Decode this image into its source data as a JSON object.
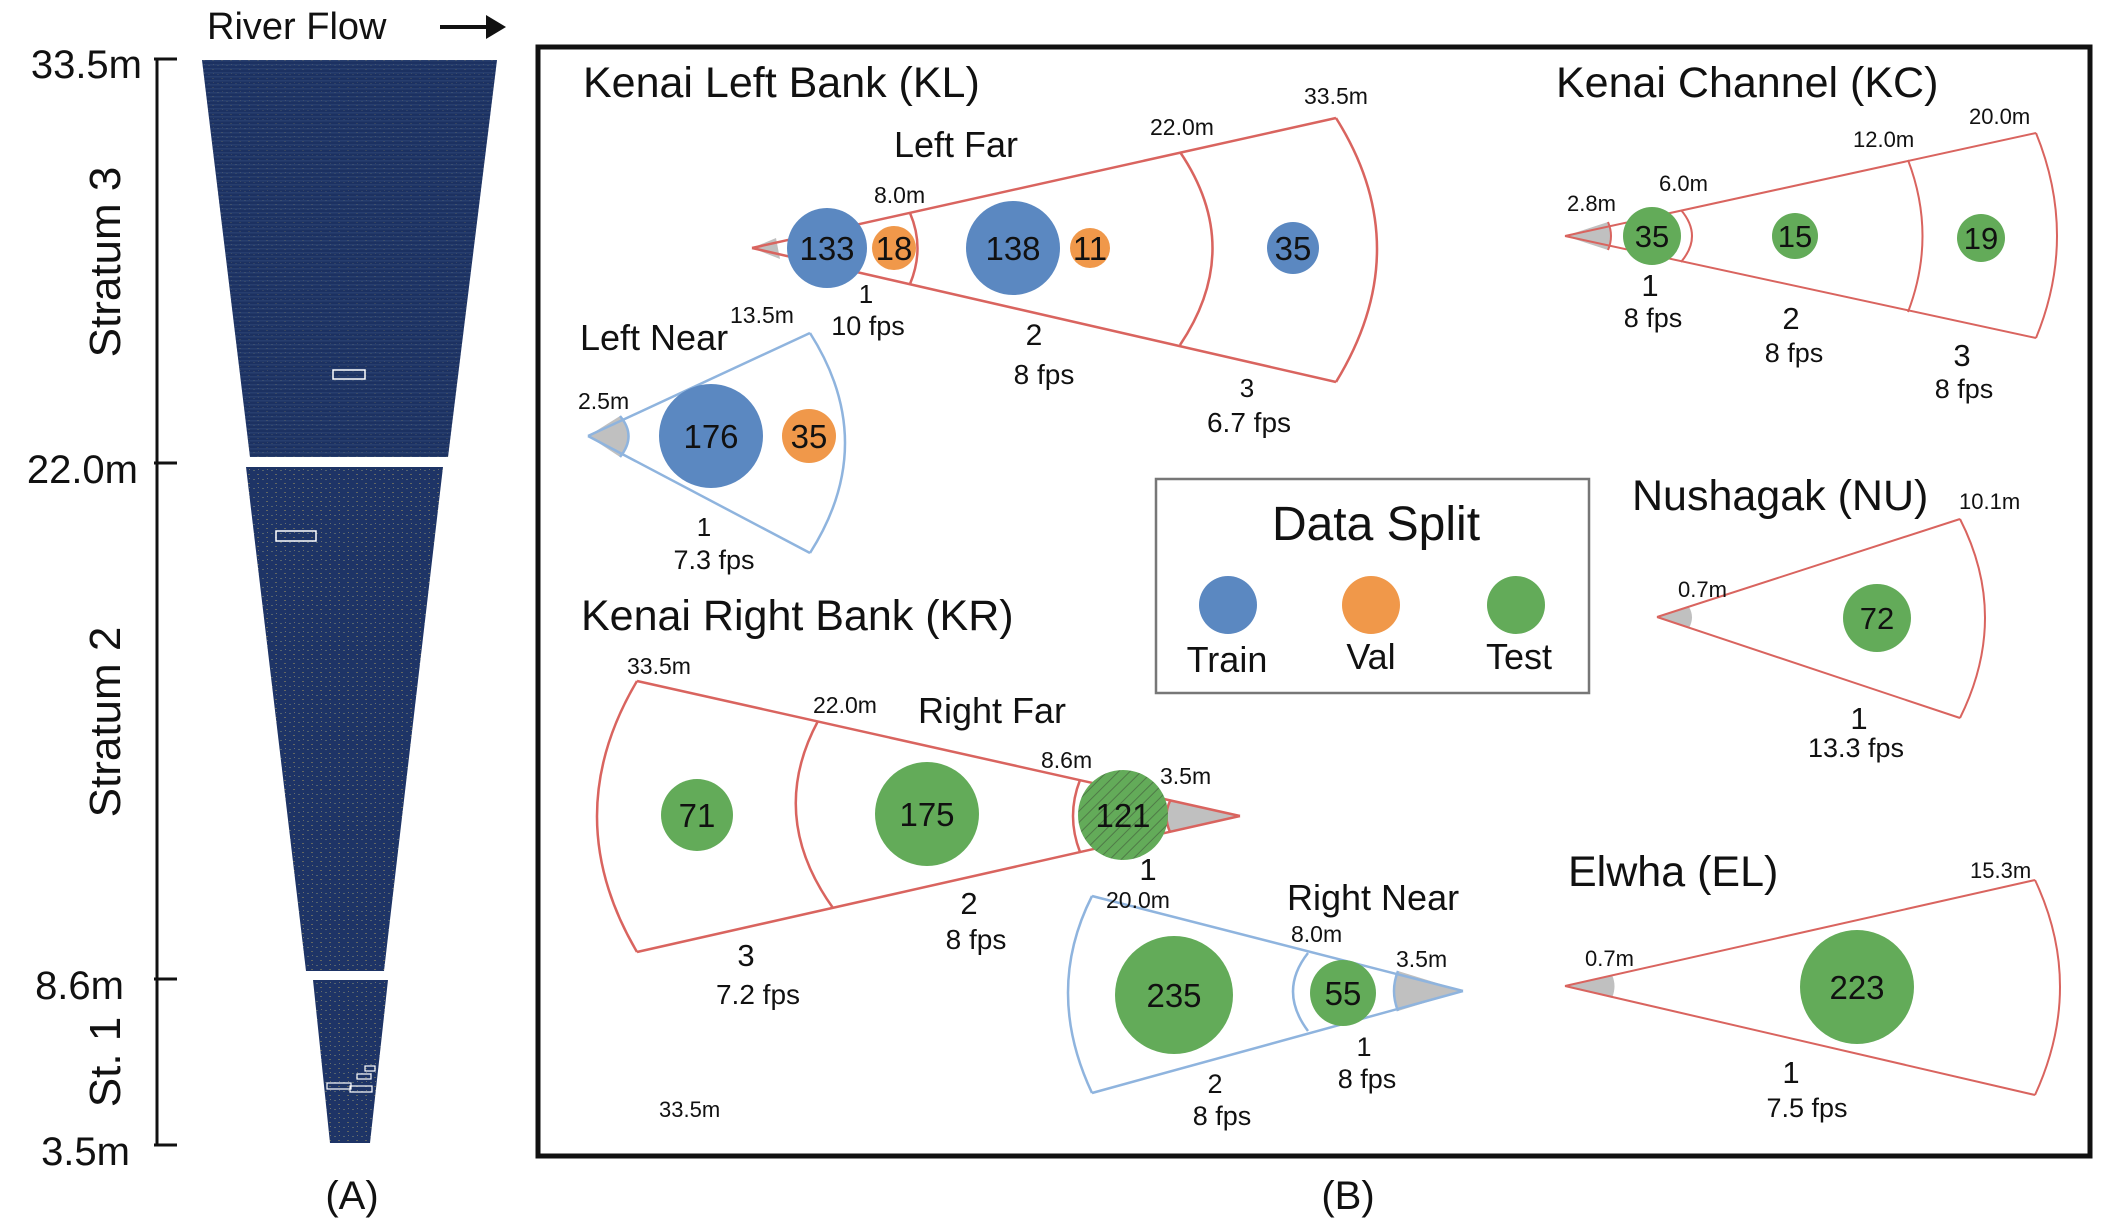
{
  "panel_a": {
    "flow_label": "River Flow",
    "depth_ticks": [
      "33.5m",
      "22.0m",
      "8.6m",
      "3.5m"
    ],
    "strata": [
      "Stratum 3",
      "Stratum 2",
      "St. 1"
    ],
    "caption": "(A)",
    "colors": {
      "sonar_bg": "#1a2e5c",
      "sonar_speckle": "#a89a5c",
      "box": "#ffffff"
    }
  },
  "panel_b": {
    "caption": "(B)",
    "legend": {
      "title": "Data Split",
      "items": [
        {
          "label": "Train",
          "color": "#5b88c1"
        },
        {
          "label": "Val",
          "color": "#f0984a"
        },
        {
          "label": "Test",
          "color": "#63ab59"
        }
      ]
    },
    "colors": {
      "left_far_outline": "#d9645f",
      "near_outline": "#8fb4de",
      "blind_zone": "#c0c0c0"
    },
    "kenai_left_bank": {
      "title": "Kenai Left Bank (KL)",
      "far_label": "Left Far",
      "far_ranges": [
        "8.0m",
        "22.0m",
        "33.5m"
      ],
      "far_strata": [
        {
          "num": "1",
          "fps": "10 fps",
          "counts": [
            "133",
            "18"
          ]
        },
        {
          "num": "2",
          "fps": "8 fps",
          "counts": [
            "138",
            "11"
          ]
        },
        {
          "num": "3",
          "fps": "6.7 fps",
          "counts": [
            "35"
          ]
        }
      ],
      "near_label": "Left Near",
      "near_ranges": [
        "2.5m",
        "13.5m"
      ],
      "near_stratum": {
        "num": "1",
        "fps": "7.3 fps",
        "counts": [
          "176",
          "35"
        ]
      }
    },
    "kenai_channel": {
      "title": "Kenai Channel (KC)",
      "ranges": [
        "2.8m",
        "6.0m",
        "12.0m",
        "20.0m"
      ],
      "strata": [
        {
          "num": "1",
          "fps": "8 fps",
          "count": "35"
        },
        {
          "num": "2",
          "fps": "8 fps",
          "count": "15"
        },
        {
          "num": "3",
          "fps": "8 fps",
          "count": "19"
        }
      ]
    },
    "kenai_right_bank": {
      "title": "Kenai Right Bank (KR)",
      "far_label": "Right Far",
      "far_ranges": [
        "33.5m",
        "22.0m",
        "8.6m",
        "3.5m"
      ],
      "far_strata": [
        {
          "num": "3",
          "fps": "7.2 fps",
          "count": "71"
        },
        {
          "num": "2",
          "fps": "8 fps",
          "count": "175"
        },
        {
          "num": "1",
          "fps": "",
          "count": "121"
        }
      ],
      "near_label": "Right Near",
      "near_ranges": [
        "20.0m",
        "8.0m",
        "3.5m"
      ],
      "near_strata": [
        {
          "num": "2",
          "fps": "8 fps",
          "count": "235"
        },
        {
          "num": "1",
          "fps": "8 fps",
          "count": "55"
        }
      ],
      "stray_range": "33.5m"
    },
    "nushagak": {
      "title": "Nushagak (NU)",
      "ranges": [
        "0.7m",
        "10.1m"
      ],
      "stratum": {
        "num": "1",
        "fps": "13.3 fps",
        "count": "72"
      }
    },
    "elwha": {
      "title": "Elwha (EL)",
      "ranges": [
        "0.7m",
        "15.3m"
      ],
      "stratum": {
        "num": "1",
        "fps": "7.5 fps",
        "count": "223"
      }
    }
  }
}
